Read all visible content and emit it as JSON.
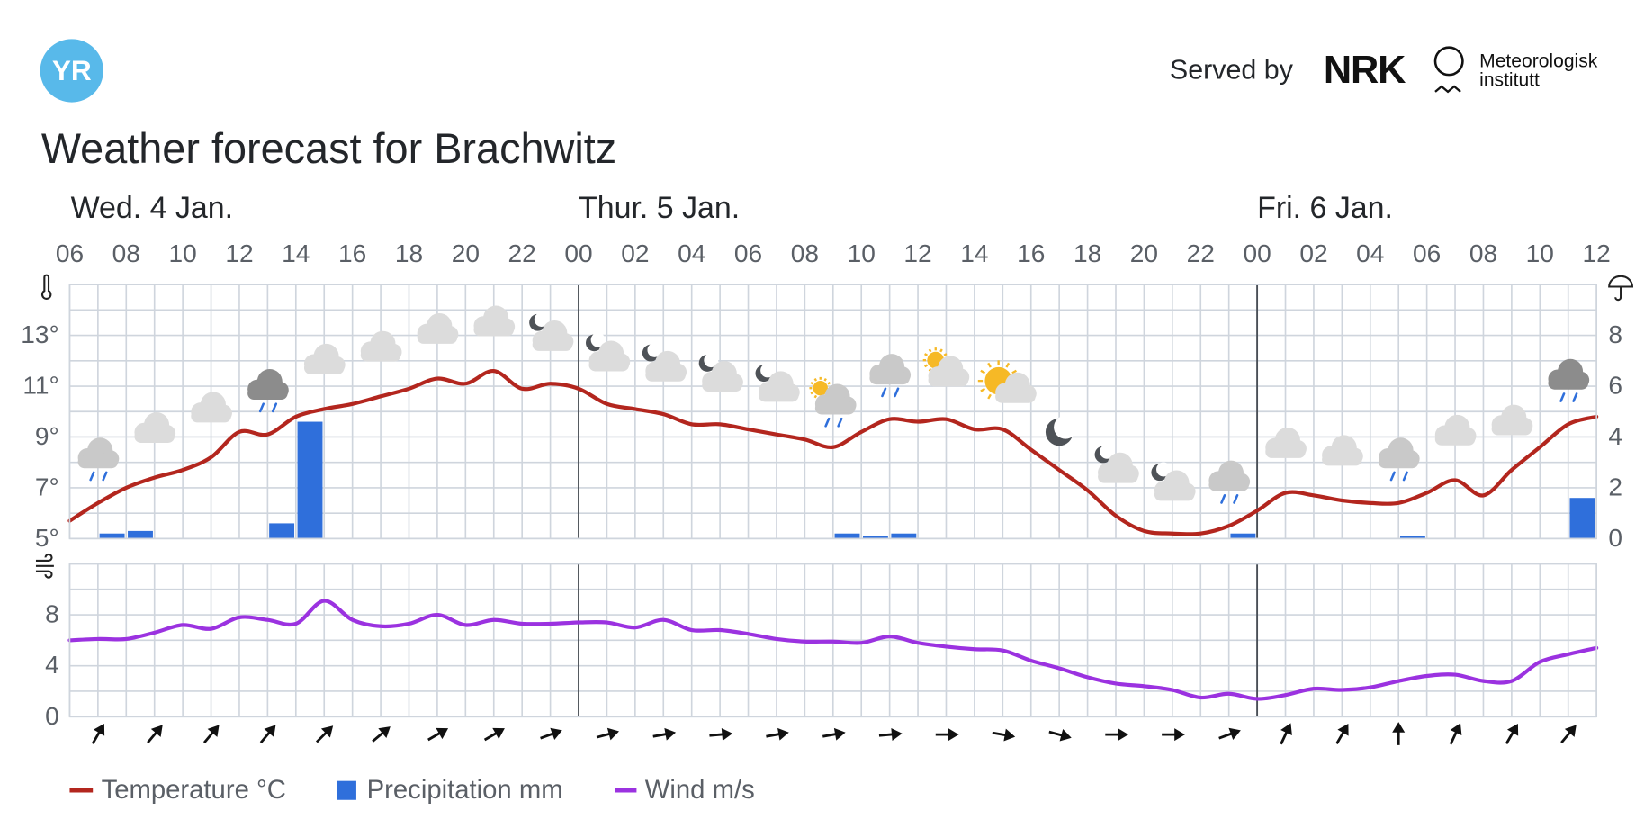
{
  "header": {
    "logo": "YR",
    "served_by": "Served by",
    "nrk": "NRK",
    "met_line1": "Meteorologisk",
    "met_line2": "institutt"
  },
  "title": "Weather forecast for Brachwitz",
  "chart_data": [
    {
      "type": "line",
      "x": [
        6,
        7,
        8,
        9,
        10,
        11,
        12,
        13,
        14,
        15,
        16,
        17,
        18,
        19,
        20,
        21,
        22,
        23,
        24,
        25,
        26,
        27,
        28,
        29,
        30,
        31,
        32,
        33,
        34,
        35,
        36,
        37,
        38,
        39,
        40,
        41,
        42,
        43,
        44,
        45,
        46,
        47,
        48,
        49,
        50,
        51,
        52,
        53,
        54,
        55,
        56,
        57,
        58,
        59,
        60
      ],
      "xlim": [
        6,
        60
      ],
      "xticks": [
        {
          "value": 6,
          "label": "06"
        },
        {
          "value": 8,
          "label": "08"
        },
        {
          "value": 10,
          "label": "10"
        },
        {
          "value": 12,
          "label": "12"
        },
        {
          "value": 14,
          "label": "14"
        },
        {
          "value": 16,
          "label": "16"
        },
        {
          "value": 18,
          "label": "18"
        },
        {
          "value": 20,
          "label": "20"
        },
        {
          "value": 22,
          "label": "22"
        },
        {
          "value": 24,
          "label": "00"
        },
        {
          "value": 26,
          "label": "02"
        },
        {
          "value": 28,
          "label": "04"
        },
        {
          "value": 30,
          "label": "06"
        },
        {
          "value": 32,
          "label": "08"
        },
        {
          "value": 34,
          "label": "10"
        },
        {
          "value": 36,
          "label": "12"
        },
        {
          "value": 38,
          "label": "14"
        },
        {
          "value": 40,
          "label": "16"
        },
        {
          "value": 42,
          "label": "18"
        },
        {
          "value": 44,
          "label": "20"
        },
        {
          "value": 46,
          "label": "22"
        },
        {
          "value": 48,
          "label": "00"
        },
        {
          "value": 50,
          "label": "02"
        },
        {
          "value": 52,
          "label": "04"
        },
        {
          "value": 54,
          "label": "06"
        },
        {
          "value": 56,
          "label": "08"
        },
        {
          "value": 58,
          "label": "10"
        },
        {
          "value": 60,
          "label": "12"
        }
      ],
      "day_labels": [
        {
          "value": 6,
          "label": "Wed. 4 Jan."
        },
        {
          "value": 24,
          "label": "Thur. 5 Jan."
        },
        {
          "value": 48,
          "label": "Fri. 6 Jan."
        }
      ],
      "ylim": [
        5,
        15
      ],
      "yticks": [
        {
          "value": 5,
          "label": "5°"
        },
        {
          "value": 7,
          "label": "7°"
        },
        {
          "value": 9,
          "label": "9°"
        },
        {
          "value": 11,
          "label": "11°"
        },
        {
          "value": 13,
          "label": "13°"
        }
      ],
      "yminor": [
        6,
        8,
        10,
        12,
        14,
        15
      ],
      "y2lim": [
        0,
        10
      ],
      "y2ticks": [
        0,
        2,
        4,
        6,
        8
      ],
      "grid": true,
      "series": [
        {
          "name": "Temperature °C",
          "type": "line",
          "color": "#b3261e",
          "values": [
            5.7,
            6.4,
            7.0,
            7.4,
            7.7,
            8.2,
            9.2,
            9.1,
            9.8,
            10.1,
            10.3,
            10.6,
            10.9,
            11.3,
            11.1,
            11.6,
            10.9,
            11.1,
            10.9,
            10.3,
            10.1,
            9.9,
            9.5,
            9.5,
            9.3,
            9.1,
            8.9,
            8.6,
            9.2,
            9.7,
            9.6,
            9.7,
            9.3,
            9.3,
            8.5,
            7.7,
            6.9,
            5.9,
            5.3,
            5.2,
            5.2,
            5.5,
            6.1,
            6.8,
            6.7,
            6.5,
            6.4,
            6.4,
            6.8,
            7.3,
            6.7,
            7.7,
            8.6,
            9.5,
            9.8
          ]
        },
        {
          "name": "Precipitation mm",
          "type": "bar",
          "axis": "y2",
          "color": "#2f6fdb",
          "values": [
            0,
            0.2,
            0.3,
            0,
            0,
            0,
            0,
            0.6,
            4.6,
            0,
            0,
            0,
            0,
            0,
            0,
            0,
            0,
            0,
            0,
            0,
            0,
            0,
            0,
            0,
            0,
            0,
            0,
            0.2,
            0.1,
            0.2,
            0,
            0,
            0,
            0,
            0,
            0,
            0,
            0,
            0,
            0,
            0,
            0.2,
            0,
            0,
            0,
            0,
            0,
            0.1,
            0,
            0,
            0,
            0,
            0,
            1.6,
            0
          ]
        }
      ]
    },
    {
      "type": "line",
      "x": [
        6,
        7,
        8,
        9,
        10,
        11,
        12,
        13,
        14,
        15,
        16,
        17,
        18,
        19,
        20,
        21,
        22,
        23,
        24,
        25,
        26,
        27,
        28,
        29,
        30,
        31,
        32,
        33,
        34,
        35,
        36,
        37,
        38,
        39,
        40,
        41,
        42,
        43,
        44,
        45,
        46,
        47,
        48,
        49,
        50,
        51,
        52,
        53,
        54,
        55,
        56,
        57,
        58,
        59,
        60
      ],
      "xlim": [
        6,
        60
      ],
      "ylim": [
        0,
        12
      ],
      "yticks": [
        0,
        4,
        8
      ],
      "yminor": [
        2,
        6,
        10,
        12
      ],
      "grid": true,
      "series": [
        {
          "name": "Wind m/s",
          "type": "line",
          "color": "#9b32e0",
          "values": [
            6.0,
            6.1,
            6.1,
            6.6,
            7.2,
            6.9,
            7.8,
            7.6,
            7.3,
            9.1,
            7.6,
            7.1,
            7.3,
            8.0,
            7.2,
            7.6,
            7.3,
            7.3,
            7.4,
            7.4,
            7.0,
            7.6,
            6.8,
            6.8,
            6.5,
            6.1,
            5.9,
            5.9,
            5.8,
            6.3,
            5.8,
            5.5,
            5.3,
            5.2,
            4.4,
            3.8,
            3.1,
            2.6,
            2.4,
            2.1,
            1.5,
            1.8,
            1.4,
            1.7,
            2.2,
            2.1,
            2.3,
            2.8,
            3.2,
            3.3,
            2.8,
            2.8,
            4.3,
            4.9,
            5.4
          ]
        }
      ],
      "wind_arrows": {
        "x": [
          7,
          9,
          11,
          13,
          15,
          17,
          19,
          21,
          23,
          25,
          27,
          29,
          31,
          33,
          35,
          37,
          39,
          41,
          43,
          45,
          47,
          49,
          51,
          53,
          55,
          57,
          59
        ],
        "bearing": [
          30,
          40,
          40,
          40,
          45,
          50,
          60,
          60,
          70,
          75,
          80,
          85,
          80,
          80,
          85,
          90,
          100,
          105,
          90,
          90,
          70,
          25,
          30,
          0,
          25,
          30,
          40
        ]
      }
    }
  ]
}
